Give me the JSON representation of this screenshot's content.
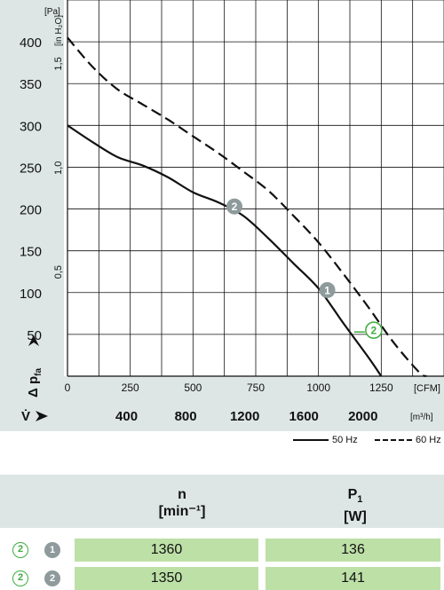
{
  "chart_data": {
    "type": "line",
    "ylabel_unit_left": "[Pa]",
    "ylabel_unit_right": "[in H₂O]",
    "y_symbol": "Δ p",
    "y_symbol_sub": "fa",
    "x_symbol": "V̇",
    "y_ticks": [
      "400",
      "350",
      "300",
      "250",
      "200",
      "150",
      "100",
      "50"
    ],
    "y_ticks_inh2o": [
      "1,5",
      "1,0",
      "0,5"
    ],
    "x_ticks_cfm": [
      "0",
      "250",
      "500",
      "750",
      "1000",
      "1250"
    ],
    "x_unit_cfm": "[CFM]",
    "x_ticks_m3h": [
      "400",
      "800",
      "1200",
      "1600",
      "2000"
    ],
    "x_unit_m3h": "[m³/h]",
    "xlim_cfm": [
      0,
      1500
    ],
    "ylim_pa": [
      0,
      450
    ],
    "series": [
      {
        "name": "50 Hz",
        "style": "solid",
        "x": [
          0,
          100,
          200,
          300,
          400,
          500,
          600,
          700,
          800,
          900,
          1000,
          1100,
          1200,
          1250
        ],
        "y": [
          300,
          280,
          262,
          252,
          238,
          220,
          208,
          192,
          165,
          135,
          105,
          63,
          22,
          0
        ]
      },
      {
        "name": "60 Hz",
        "style": "dashed",
        "x": [
          0,
          100,
          200,
          300,
          400,
          500,
          600,
          700,
          800,
          900,
          1000,
          1100,
          1200,
          1300,
          1400,
          1430
        ],
        "y": [
          405,
          370,
          343,
          325,
          307,
          287,
          267,
          245,
          222,
          192,
          160,
          122,
          82,
          40,
          5,
          0
        ]
      }
    ],
    "markers": [
      {
        "label": "2",
        "style": "filled",
        "x": 665,
        "y": 203
      },
      {
        "label": "1",
        "style": "filled",
        "x": 1035,
        "y": 103
      },
      {
        "label": "2",
        "style": "outline",
        "x": 1220,
        "y": 55
      }
    ],
    "legend": [
      {
        "name": "50 Hz",
        "style": "solid"
      },
      {
        "name": "60 Hz",
        "style": "dashed"
      }
    ]
  },
  "table": {
    "col_n_label": "n",
    "col_n_unit": "[min⁻¹]",
    "col_p_label": "P",
    "col_p_sub": "1",
    "col_p_unit": "[W]",
    "rows": [
      {
        "badge_a": "2",
        "badge_b": "1",
        "n": "1360",
        "p": "136"
      },
      {
        "badge_a": "2",
        "badge_b": "2",
        "n": "1350",
        "p": "141"
      }
    ]
  },
  "colors": {
    "panel": "#dde6e4",
    "grid": "#111111",
    "marker_fill": "#8e9a9b",
    "outline_green": "#3dae3d",
    "cell_green": "#bde0a7"
  }
}
